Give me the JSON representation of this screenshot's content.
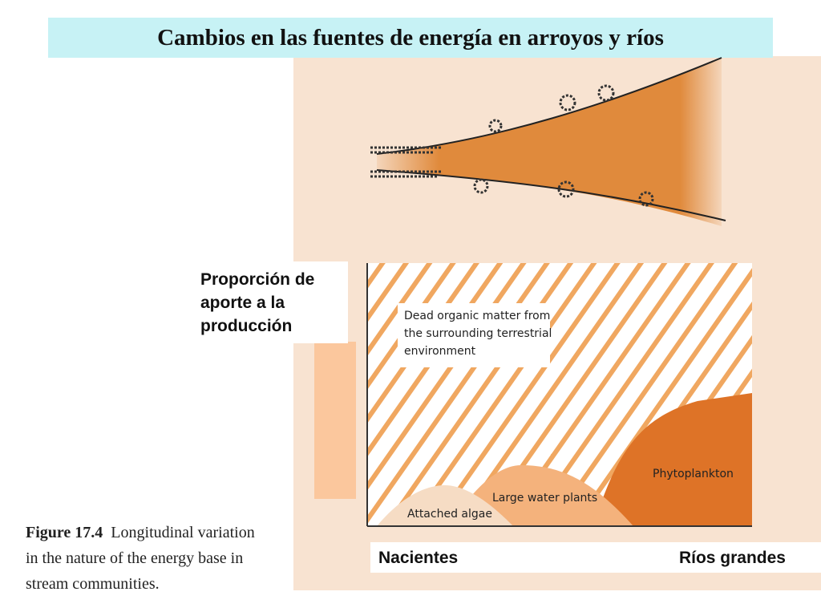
{
  "title": "Cambios en las fuentes de energía en arroyos y ríos",
  "y_axis_label": {
    "lines": [
      "Proporción de",
      "aporte a la",
      "producción"
    ]
  },
  "x_axis_labels": {
    "left": "Nacientes",
    "right": "Ríos grandes"
  },
  "caption": {
    "figure": "Figure 17.4",
    "text": "Longitudinal variation in the nature of the energy base in stream communities."
  },
  "regions": {
    "dead_organic": [
      "Dead organic matter from",
      "the surrounding terrestrial",
      "environment"
    ],
    "attached_algae": "Attached algae",
    "large_water_plants": "Large water plants",
    "phytoplankton": "Phytoplankton"
  },
  "colors": {
    "title_bg": "#c7f2f5",
    "panel_bg": "#f8e3d1",
    "river": "#e08a3c",
    "stripes": "#f0a760",
    "algae": "#f6dcc4",
    "plants": "#f4b27c",
    "phytoplankton": "#de7327"
  }
}
